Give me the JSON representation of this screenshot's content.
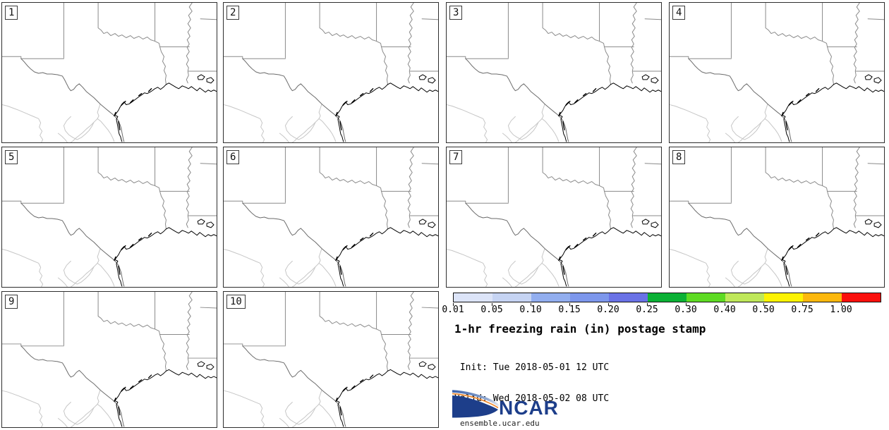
{
  "figure": {
    "title": "1-hr freezing rain (in) postage stamp",
    "init_line": " Init: Tue 2018-05-01 12 UTC",
    "valid_line": "Valid: Wed 2018-05-02 08 UTC"
  },
  "panels": [
    {
      "label": "1"
    },
    {
      "label": "2"
    },
    {
      "label": "3"
    },
    {
      "label": "4"
    },
    {
      "label": "5"
    },
    {
      "label": "6"
    },
    {
      "label": "7"
    },
    {
      "label": "8"
    },
    {
      "label": "9"
    },
    {
      "label": "10"
    }
  ],
  "colorbar": {
    "ticks": [
      "0.01",
      "0.05",
      "0.10",
      "0.15",
      "0.20",
      "0.25",
      "0.30",
      "0.40",
      "0.50",
      "0.75",
      "1.00"
    ],
    "colors": [
      "#dce4f8",
      "#c6d4f3",
      "#92aeef",
      "#7d97ec",
      "#6a72e6",
      "#0bb135",
      "#5edb23",
      "#bfe85a",
      "#fdf303",
      "#fcb80e",
      "#fb100d"
    ]
  },
  "logo": {
    "name": "NCAR",
    "url_text": "ensemble.ucar.edu",
    "navy": "#1d3e8a",
    "orange": "#ef8b33"
  },
  "chart_data": {
    "type": "heatmap",
    "title": "1-hr freezing rain (in) postage stamp",
    "init": "Tue 2018-05-01 12 UTC",
    "valid": "Wed 2018-05-02 08 UTC",
    "panel_members": [
      1,
      2,
      3,
      4,
      5,
      6,
      7,
      8,
      9,
      10
    ],
    "region": "Texas, Oklahoma, Arkansas, Louisiana, northern Mexico and Gulf Coast basemap",
    "colorbar_levels_in": [
      0.01,
      0.05,
      0.1,
      0.15,
      0.2,
      0.25,
      0.3,
      0.4,
      0.5,
      0.75,
      1.0
    ],
    "colorbar_colors": [
      "#dce4f8",
      "#c6d4f3",
      "#92aeef",
      "#7d97ec",
      "#6a72e6",
      "#0bb135",
      "#5edb23",
      "#bfe85a",
      "#fdf303",
      "#fcb80e",
      "#fb100d"
    ],
    "values": "no shaded freezing-rain values appear in any of the 10 ensemble member panels (all maps blank)",
    "legend_position": "bottom-right quadrant",
    "source_text": "NCAR ensemble.ucar.edu"
  }
}
